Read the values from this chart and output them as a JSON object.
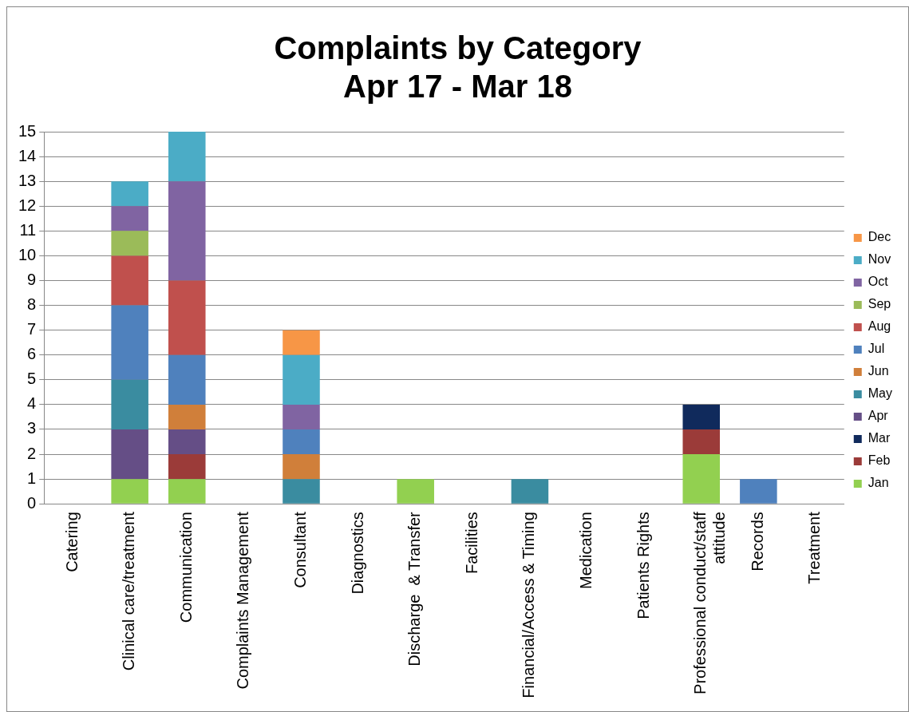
{
  "chart_data": {
    "type": "bar",
    "stacked": true,
    "title": "Complaints by Category\nApr 17 - Mar 18",
    "categories": [
      "Catering",
      "Clinical care/treatment",
      "Communication",
      "Complaints Management",
      "Consultant",
      "Diagnostics",
      "Discharge  & Transfer",
      "Facilities",
      "Financial/Access & Timing",
      "Medication",
      "Patients Rights",
      "Professional conduct/staff attitude",
      "Records",
      "Treatment"
    ],
    "series": [
      {
        "name": "Jan",
        "color": "#92d050",
        "values": [
          0,
          1,
          1,
          0,
          0,
          0,
          1,
          0,
          0,
          0,
          0,
          2,
          0,
          0
        ]
      },
      {
        "name": "Feb",
        "color": "#9b3b39",
        "values": [
          0,
          0,
          1,
          0,
          0,
          0,
          0,
          0,
          0,
          0,
          0,
          1,
          0,
          0
        ]
      },
      {
        "name": "Mar",
        "color": "#102a5c",
        "values": [
          0,
          0,
          0,
          0,
          0,
          0,
          0,
          0,
          0,
          0,
          0,
          1,
          0,
          0
        ]
      },
      {
        "name": "Apr",
        "color": "#654e86",
        "values": [
          0,
          2,
          1,
          0,
          0,
          0,
          0,
          0,
          0,
          0,
          0,
          0,
          0,
          0
        ]
      },
      {
        "name": "May",
        "color": "#3a8ca0",
        "values": [
          0,
          2,
          0,
          0,
          1,
          0,
          0,
          0,
          1,
          0,
          0,
          0,
          0,
          0
        ]
      },
      {
        "name": "Jun",
        "color": "#d07f3a",
        "values": [
          0,
          0,
          1,
          0,
          1,
          0,
          0,
          0,
          0,
          0,
          0,
          0,
          0,
          0
        ]
      },
      {
        "name": "Jul",
        "color": "#4f81bd",
        "values": [
          0,
          3,
          2,
          0,
          1,
          0,
          0,
          0,
          0,
          0,
          0,
          0,
          1,
          0
        ]
      },
      {
        "name": "Aug",
        "color": "#c0504d",
        "values": [
          0,
          2,
          3,
          0,
          0,
          0,
          0,
          0,
          0,
          0,
          0,
          0,
          0,
          0
        ]
      },
      {
        "name": "Sep",
        "color": "#9bbb59",
        "values": [
          0,
          1,
          0,
          0,
          0,
          0,
          0,
          0,
          0,
          0,
          0,
          0,
          0,
          0
        ]
      },
      {
        "name": "Oct",
        "color": "#8064a2",
        "values": [
          0,
          1,
          4,
          0,
          1,
          0,
          0,
          0,
          0,
          0,
          0,
          0,
          0,
          0
        ]
      },
      {
        "name": "Nov",
        "color": "#4bacc6",
        "values": [
          0,
          1,
          2,
          0,
          2,
          0,
          0,
          0,
          0,
          0,
          0,
          0,
          0,
          0
        ]
      },
      {
        "name": "Dec",
        "color": "#f79646",
        "values": [
          0,
          0,
          0,
          0,
          1,
          0,
          0,
          0,
          0,
          0,
          0,
          0,
          0,
          0
        ]
      }
    ],
    "ylim": [
      0,
      15
    ],
    "yticks": [
      0,
      1,
      2,
      3,
      4,
      5,
      6,
      7,
      8,
      9,
      10,
      11,
      12,
      13,
      14,
      15
    ],
    "grid": "y",
    "legend": "right"
  }
}
